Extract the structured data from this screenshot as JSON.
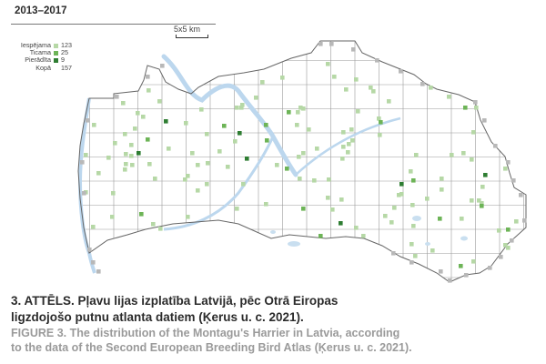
{
  "map": {
    "period": "2013–2017",
    "scale_label": "5x5 km",
    "legend": [
      {
        "label": "Iespējama",
        "count": "123",
        "color": "#b6d8a6"
      },
      {
        "label": "Ticama",
        "count": "25",
        "color": "#6db457"
      },
      {
        "label": "Pierādīta",
        "count": "9",
        "color": "#2e7d32"
      },
      {
        "label": "Kopā",
        "count": "157",
        "color": "#ffffff"
      }
    ],
    "colors": {
      "possible": "#b6d8a6",
      "probable": "#6db457",
      "confirmed": "#2e7d32",
      "outside_square": "#b8b8b8",
      "water": "#c9dff0",
      "grid": "#9a9a9a",
      "border": "#666666"
    }
  },
  "caption": {
    "lv_line1": "3. ATTĒLS. Pļavu lijas izplatība Latvijā, pēc Otrā Eiropas",
    "lv_line2": "ligzdojošo putnu atlanta datiem (Ķerus u. c. 2021).",
    "en_line1": "FIGURE 3. The distribution of the Montagu's Harrier in Latvia, according",
    "en_line2": "to the data of the Second European Breeding Bird Atlas (Ķerus u. c. 2021)."
  }
}
